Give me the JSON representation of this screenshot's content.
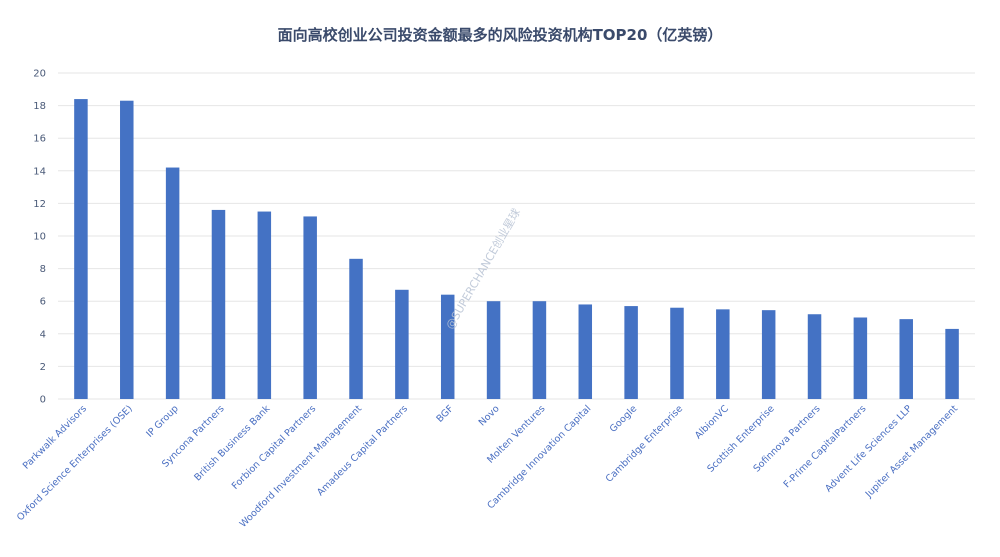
{
  "chart_data": {
    "type": "bar",
    "title": "面向高校创业公司投资金额最多的风险投资机构TOP20（亿英镑）",
    "xlabel": "",
    "ylabel": "",
    "ylim": [
      0,
      20
    ],
    "yticks": [
      0,
      2,
      4,
      6,
      8,
      10,
      12,
      14,
      16,
      18,
      20
    ],
    "grid": true,
    "bar_color": "#4472c4",
    "categories": [
      "Parkwalk Advisors",
      "Oxford Science Enterprises (OSE)",
      "IP Group",
      "Syncona Partners",
      "British Business Bank",
      "Forbion Capital Partners",
      "Woodford Investment Management",
      "Amadeus Capital Partners",
      "BGF",
      "Novo",
      "Molten Ventures",
      "Cambridge Innovation Capital",
      "Google",
      "Cambridge Enterprise",
      "AlbionVC",
      "Scottish Enterprise",
      "Sofinnova Partners",
      "F-Prime CapitalPartners",
      "Advent Life Sciences LLP",
      "Jupiter Asset Management"
    ],
    "values": [
      18.4,
      18.3,
      14.2,
      11.6,
      11.5,
      11.2,
      8.6,
      6.7,
      6.4,
      6.0,
      6.0,
      5.8,
      5.7,
      5.6,
      5.5,
      5.45,
      5.2,
      5.0,
      4.9,
      4.3
    ]
  },
  "watermark": "@SUPERCHANCE创业星球"
}
